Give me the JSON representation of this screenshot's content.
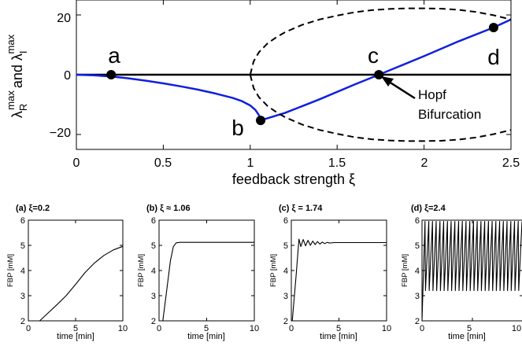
{
  "chart_data": [
    {
      "type": "line",
      "ylabel_parts": {
        "lam_r": "λ",
        "sub_r": "R",
        "sup_r": "max",
        "and": "and λ",
        "sub_i": "I",
        "sup_i": "max"
      },
      "xlabel": "feedback strength ξ",
      "xlim": [
        0,
        2.5
      ],
      "ylim": [
        -25,
        25
      ],
      "xticks": [
        "0",
        "0.5",
        "1",
        "1.5",
        "2",
        "2.5"
      ],
      "yticks": [
        "20",
        "0",
        "−20"
      ],
      "series": [
        {
          "style": "blue-solid",
          "color": "#1020dd",
          "x": [
            0,
            0.1,
            0.2,
            0.3,
            0.4,
            0.5,
            0.6,
            0.7,
            0.8,
            0.9,
            0.95,
            1.0,
            1.03,
            1.05,
            1.06
          ],
          "y": [
            0,
            -0.2,
            -0.6,
            -1.2,
            -2.0,
            -2.9,
            -3.9,
            -5.0,
            -6.3,
            -7.8,
            -8.8,
            -10.3,
            -11.8,
            -13.5,
            -15.3
          ]
        },
        {
          "style": "blue-solid",
          "color": "#1020dd",
          "x": [
            1.06,
            1.2,
            1.4,
            1.6,
            1.74,
            2.0,
            2.2,
            2.4,
            2.5
          ],
          "y": [
            -15.3,
            -12.8,
            -8.2,
            -3.3,
            0,
            6.2,
            11.2,
            15.8,
            18.5
          ]
        },
        {
          "style": "black-dashed",
          "color": "#000000",
          "x": [
            1.0,
            1.02,
            1.05,
            1.1,
            1.15,
            1.2,
            1.3,
            1.4,
            1.5,
            1.6,
            1.7,
            1.8,
            1.9,
            2.0,
            2.1,
            2.2,
            2.3,
            2.4,
            2.5
          ],
          "y": [
            0,
            4.5,
            7.5,
            10.5,
            12.5,
            14.2,
            16.7,
            18.5,
            19.8,
            20.9,
            21.6,
            22.0,
            22.2,
            22.2,
            22.1,
            21.7,
            21.0,
            19.9,
            18.5
          ]
        },
        {
          "style": "black-dashed",
          "color": "#000000",
          "x": [
            1.0,
            1.02,
            1.05,
            1.1,
            1.15,
            1.2,
            1.3,
            1.4,
            1.5,
            1.6,
            1.7,
            1.8,
            1.9,
            2.0,
            2.1,
            2.2,
            2.3,
            2.4,
            2.5
          ],
          "y": [
            0,
            -4.5,
            -7.5,
            -10.5,
            -12.5,
            -14.2,
            -16.7,
            -18.5,
            -19.8,
            -20.9,
            -21.6,
            -22.0,
            -22.2,
            -22.2,
            -22.1,
            -21.7,
            -21.0,
            -19.9,
            -18.5
          ]
        }
      ],
      "zero_line": true,
      "points": [
        {
          "label": "a",
          "x": 0.2,
          "y": 0
        },
        {
          "label": "b",
          "x": 1.06,
          "y": -15.3
        },
        {
          "label": "c",
          "x": 1.74,
          "y": 0
        },
        {
          "label": "d",
          "x": 2.4,
          "y": 15.8
        }
      ],
      "annotation": {
        "line1": "Hopf",
        "line2": "Bifurcation",
        "target_x": 1.74,
        "target_y": 0
      }
    },
    {
      "type": "line",
      "title_prefix": "(a) ξ",
      "title_value": "=0.2",
      "ylabel": "FBP [mM]",
      "xlabel": "time [min]",
      "xlim": [
        0,
        10
      ],
      "ylim": [
        2,
        6
      ],
      "xticks": [
        "0",
        "5",
        "10"
      ],
      "yticks": [
        "2",
        "3",
        "4",
        "5",
        "6"
      ],
      "x": [
        1.2,
        2,
        3,
        4,
        5,
        6,
        7,
        8,
        9,
        10
      ],
      "y": [
        2.0,
        2.28,
        2.63,
        3.0,
        3.45,
        3.92,
        4.3,
        4.6,
        4.82,
        4.96
      ]
    },
    {
      "type": "line",
      "title_prefix": "(b) ξ",
      "title_value": " ≈ 1.06",
      "ylabel": "FBP [mM]",
      "xlabel": "time [min]",
      "xlim": [
        0,
        10
      ],
      "ylim": [
        2,
        6
      ],
      "xticks": [
        "0",
        "5",
        "10"
      ],
      "yticks": [
        "2",
        "3",
        "4",
        "5",
        "6"
      ],
      "x": [
        0.4,
        0.8,
        1.2,
        1.5,
        1.8,
        2.2,
        3,
        5,
        10
      ],
      "y": [
        2.0,
        3.2,
        4.4,
        4.95,
        5.1,
        5.12,
        5.12,
        5.12,
        5.12
      ]
    },
    {
      "type": "line",
      "title_prefix": "(c) ξ",
      "title_value": " = 1.74",
      "ylabel": "FBP [mM]",
      "xlabel": "time [min]",
      "xlim": [
        0,
        10
      ],
      "ylim": [
        2,
        6
      ],
      "xticks": [
        "0",
        "5",
        "10"
      ],
      "yticks": [
        "2",
        "3",
        "4",
        "5",
        "6"
      ],
      "x": [
        0.1,
        0.5,
        0.8,
        1.0,
        1.25,
        1.5,
        1.75,
        2.0,
        2.25,
        2.5,
        2.75,
        3.0,
        3.25,
        3.5,
        3.75,
        4.0,
        4.5,
        10
      ],
      "y": [
        2.0,
        3.8,
        5.25,
        4.95,
        5.23,
        4.98,
        5.2,
        5.0,
        5.17,
        5.03,
        5.15,
        5.05,
        5.13,
        5.07,
        5.12,
        5.09,
        5.11,
        5.11
      ]
    },
    {
      "type": "line",
      "title_prefix": "(d) ξ",
      "title_value": "=2.4",
      "ylabel": "FBP [mM]",
      "xlabel": "time [min]",
      "xlim": [
        0,
        10
      ],
      "ylim": [
        2,
        6
      ],
      "xticks": [
        "0",
        "5",
        "10"
      ],
      "yticks": [
        "2",
        "3",
        "4",
        "5",
        "6"
      ],
      "oscillation": {
        "start": 0.3,
        "period": 0.37,
        "min": 3.2,
        "max": 5.95,
        "initial": 2.0
      }
    }
  ]
}
